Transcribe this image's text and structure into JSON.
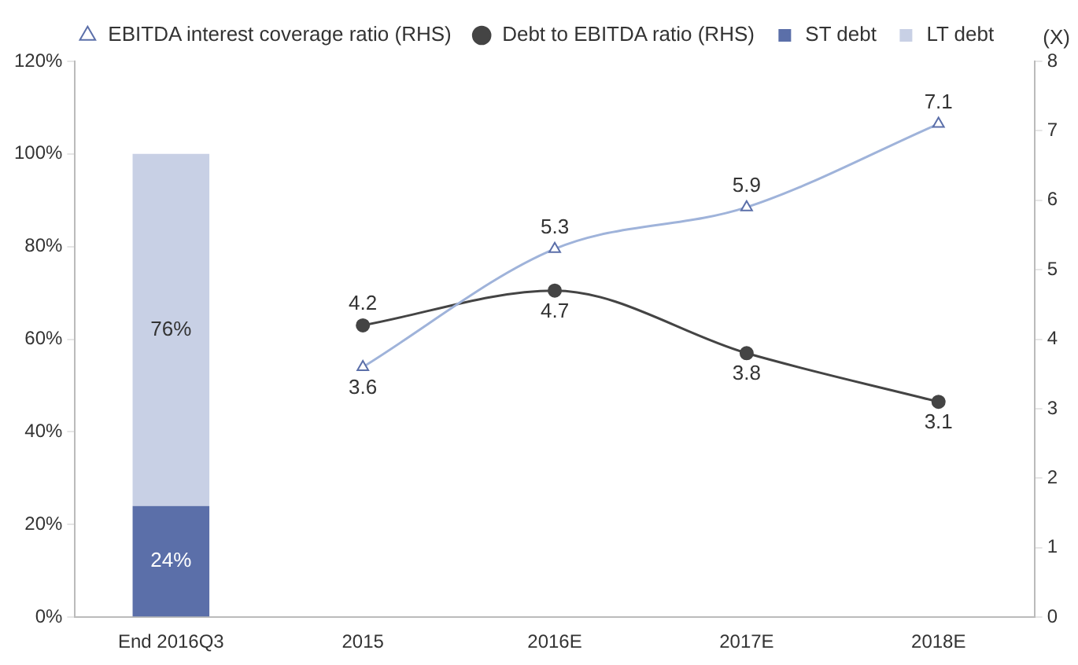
{
  "chart_data": {
    "type": "bar",
    "categories": [
      "End 2016Q3",
      "2015",
      "2016E",
      "2017E",
      "2018E"
    ],
    "stacked": true,
    "legend": "top",
    "grid": false,
    "ylim": [
      0,
      120
    ],
    "yticks": [
      {
        "value": 0,
        "label": "0%"
      },
      {
        "value": 20,
        "label": "20%"
      },
      {
        "value": 40,
        "label": "40%"
      },
      {
        "value": 60,
        "label": "60%"
      },
      {
        "value": 80,
        "label": "80%"
      },
      {
        "value": 100,
        "label": "100%"
      },
      {
        "value": 120,
        "label": "120%"
      }
    ],
    "y2lim": [
      0,
      8
    ],
    "y2ticks": [
      0,
      1,
      2,
      3,
      4,
      5,
      6,
      7,
      8
    ],
    "y2label": "(X)",
    "series": [
      {
        "name": "ST debt",
        "color": "#5b6fa9",
        "values": [
          24,
          null,
          null,
          null,
          null
        ],
        "value_labels": [
          "24%",
          null,
          null,
          null,
          null
        ]
      },
      {
        "name": "LT debt",
        "color": "#c8d0e5",
        "values": [
          76,
          null,
          null,
          null,
          null
        ],
        "value_labels": [
          "76%",
          null,
          null,
          null,
          null
        ]
      },
      {
        "name": "EBITDA interest coverage ratio (RHS)",
        "type": "line",
        "axis": "y2",
        "marker": "triangle",
        "color": "#9fb3da",
        "values": [
          null,
          3.6,
          5.3,
          5.9,
          7.1
        ],
        "value_labels": [
          null,
          "3.6",
          "5.3",
          "5.9",
          "7.1"
        ]
      },
      {
        "name": "Debt to EBITDA ratio (RHS)",
        "type": "line",
        "axis": "y2",
        "marker": "circle",
        "color": "#444444",
        "values": [
          null,
          4.2,
          4.7,
          3.8,
          3.1
        ],
        "value_labels": [
          null,
          "4.2",
          "4.7",
          "3.8",
          "3.1"
        ]
      }
    ]
  }
}
